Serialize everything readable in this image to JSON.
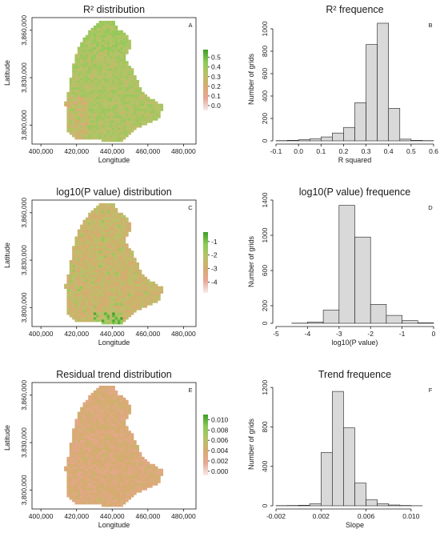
{
  "chart_data": [
    {
      "type": "heatmap",
      "panel": "A",
      "title": "R² distribution",
      "xlabel": "Longitude",
      "ylabel": "Latitude",
      "x_ticks": [
        "400,000",
        "420,000",
        "440,000",
        "460,000",
        "480,000"
      ],
      "x_tick_values": [
        400000,
        420000,
        440000,
        460000,
        480000
      ],
      "y_ticks": [
        "3,800,000",
        "3,830,000",
        "3,860,000"
      ],
      "y_tick_values": [
        3800000,
        3830000,
        3860000
      ],
      "xlim": [
        395000,
        487000
      ],
      "ylim": [
        3788000,
        3868000
      ],
      "legend_ticks": [
        "0.0",
        "0.1",
        "0.2",
        "0.3",
        "0.4",
        "0.5"
      ],
      "legend_values": [
        0.0,
        0.1,
        0.2,
        0.3,
        0.4,
        0.5
      ],
      "legend_range": [
        -0.05,
        0.58
      ],
      "legend_colors": [
        "#f6ecea",
        "#e8a694",
        "#d7ab70",
        "#b7c268",
        "#8ccb56",
        "#3c9e28"
      ],
      "typical_value": 0.35
    },
    {
      "type": "bar",
      "panel": "B",
      "title": "R² frequence",
      "xlabel": "R squared",
      "ylabel": "Number of grids",
      "x_ticks": [
        "-0.1",
        "0.0",
        "0.1",
        "0.2",
        "0.3",
        "0.4",
        "0.5",
        "0.6"
      ],
      "x_tick_values": [
        -0.1,
        0.0,
        0.1,
        0.2,
        0.3,
        0.4,
        0.5,
        0.6
      ],
      "y_ticks": [
        "0",
        "200",
        "400",
        "600",
        "800",
        "1000"
      ],
      "y_tick_values": [
        0,
        200,
        400,
        600,
        800,
        1000
      ],
      "xlim": [
        -0.1,
        0.6
      ],
      "ylim": [
        0,
        1100
      ],
      "bin_edges": [
        -0.1,
        -0.05,
        0.0,
        0.05,
        0.1,
        0.15,
        0.2,
        0.25,
        0.3,
        0.35,
        0.4,
        0.45,
        0.5,
        0.55,
        0.6
      ],
      "values": [
        2,
        5,
        10,
        18,
        35,
        70,
        120,
        340,
        860,
        1050,
        290,
        15,
        4,
        2
      ]
    },
    {
      "type": "heatmap",
      "panel": "C",
      "title": "log10(P value) distribution",
      "xlabel": "Longitude",
      "ylabel": "Latitude",
      "x_ticks": [
        "400,000",
        "420,000",
        "440,000",
        "460,000",
        "480,000"
      ],
      "x_tick_values": [
        400000,
        420000,
        440000,
        460000,
        480000
      ],
      "y_ticks": [
        "3,800,000",
        "3,830,000",
        "3,860,000"
      ],
      "y_tick_values": [
        3800000,
        3830000,
        3860000
      ],
      "xlim": [
        395000,
        487000
      ],
      "ylim": [
        3788000,
        3868000
      ],
      "legend_ticks": [
        "-1",
        "-2",
        "-3",
        "-4"
      ],
      "legend_values": [
        -1,
        -2,
        -3,
        -4
      ],
      "legend_range": [
        -4.8,
        -0.3
      ],
      "legend_colors": [
        "#f6ecea",
        "#e8a694",
        "#d7ab70",
        "#b7c268",
        "#8ccb56",
        "#3c9e28"
      ],
      "typical_value": -2.6
    },
    {
      "type": "bar",
      "panel": "D",
      "title": "log10(P value) frequence",
      "xlabel": "log10(P value)",
      "ylabel": "Number of grids",
      "x_ticks": [
        "-5",
        "-4",
        "-3",
        "-2",
        "-1",
        "0"
      ],
      "x_tick_values": [
        -5,
        -4,
        -3,
        -2,
        -1,
        0
      ],
      "y_ticks": [
        "0",
        "200",
        "600",
        "1000",
        "1400"
      ],
      "y_tick_values": [
        0,
        200,
        600,
        1000,
        1400
      ],
      "xlim": [
        -5,
        0
      ],
      "ylim": [
        0,
        1400
      ],
      "bin_edges": [
        -5.0,
        -4.5,
        -4.0,
        -3.5,
        -3.0,
        -2.5,
        -2.0,
        -1.5,
        -1.0,
        -0.5,
        0.0
      ],
      "values": [
        0,
        2,
        15,
        150,
        1340,
        980,
        215,
        90,
        30,
        5
      ]
    },
    {
      "type": "heatmap",
      "panel": "E",
      "title": "Residual trend distribution",
      "xlabel": "Longitude",
      "ylabel": "Latitude",
      "x_ticks": [
        "400,000",
        "420,000",
        "440,000",
        "460,000",
        "480,000"
      ],
      "x_tick_values": [
        400000,
        420000,
        440000,
        460000,
        480000
      ],
      "y_ticks": [
        "3,800,000",
        "3,830,000",
        "3,860,000"
      ],
      "y_tick_values": [
        3800000,
        3830000,
        3860000
      ],
      "xlim": [
        395000,
        487000
      ],
      "ylim": [
        3788000,
        3868000
      ],
      "legend_ticks": [
        "0.000",
        "0.002",
        "0.004",
        "0.006",
        "0.008",
        "0.010"
      ],
      "legend_values": [
        0.0,
        0.002,
        0.004,
        0.006,
        0.008,
        0.01
      ],
      "legend_range": [
        -0.0008,
        0.011
      ],
      "legend_colors": [
        "#f6ecea",
        "#e8a694",
        "#d7ab70",
        "#b7c268",
        "#8ccb56",
        "#3c9e28"
      ],
      "typical_value": 0.0035
    },
    {
      "type": "bar",
      "panel": "F",
      "title": "Trend frequence",
      "xlabel": "Slope",
      "ylabel": "Number of grids",
      "x_ticks": [
        "-0.002",
        "0.002",
        "0.006",
        "0.010"
      ],
      "x_tick_values": [
        -0.002,
        0.002,
        0.006,
        0.01
      ],
      "y_ticks": [
        "0",
        "400",
        "800",
        "1200"
      ],
      "y_tick_values": [
        0,
        400,
        800,
        1200
      ],
      "xlim": [
        -0.002,
        0.012
      ],
      "ylim": [
        0,
        1250
      ],
      "bin_edges": [
        -0.002,
        -0.001,
        0.0,
        0.001,
        0.002,
        0.003,
        0.004,
        0.005,
        0.006,
        0.007,
        0.008,
        0.009,
        0.01,
        0.011,
        0.012
      ],
      "values": [
        2,
        3,
        5,
        20,
        540,
        1160,
        790,
        230,
        60,
        20,
        8,
        3,
        1,
        0
      ]
    }
  ]
}
